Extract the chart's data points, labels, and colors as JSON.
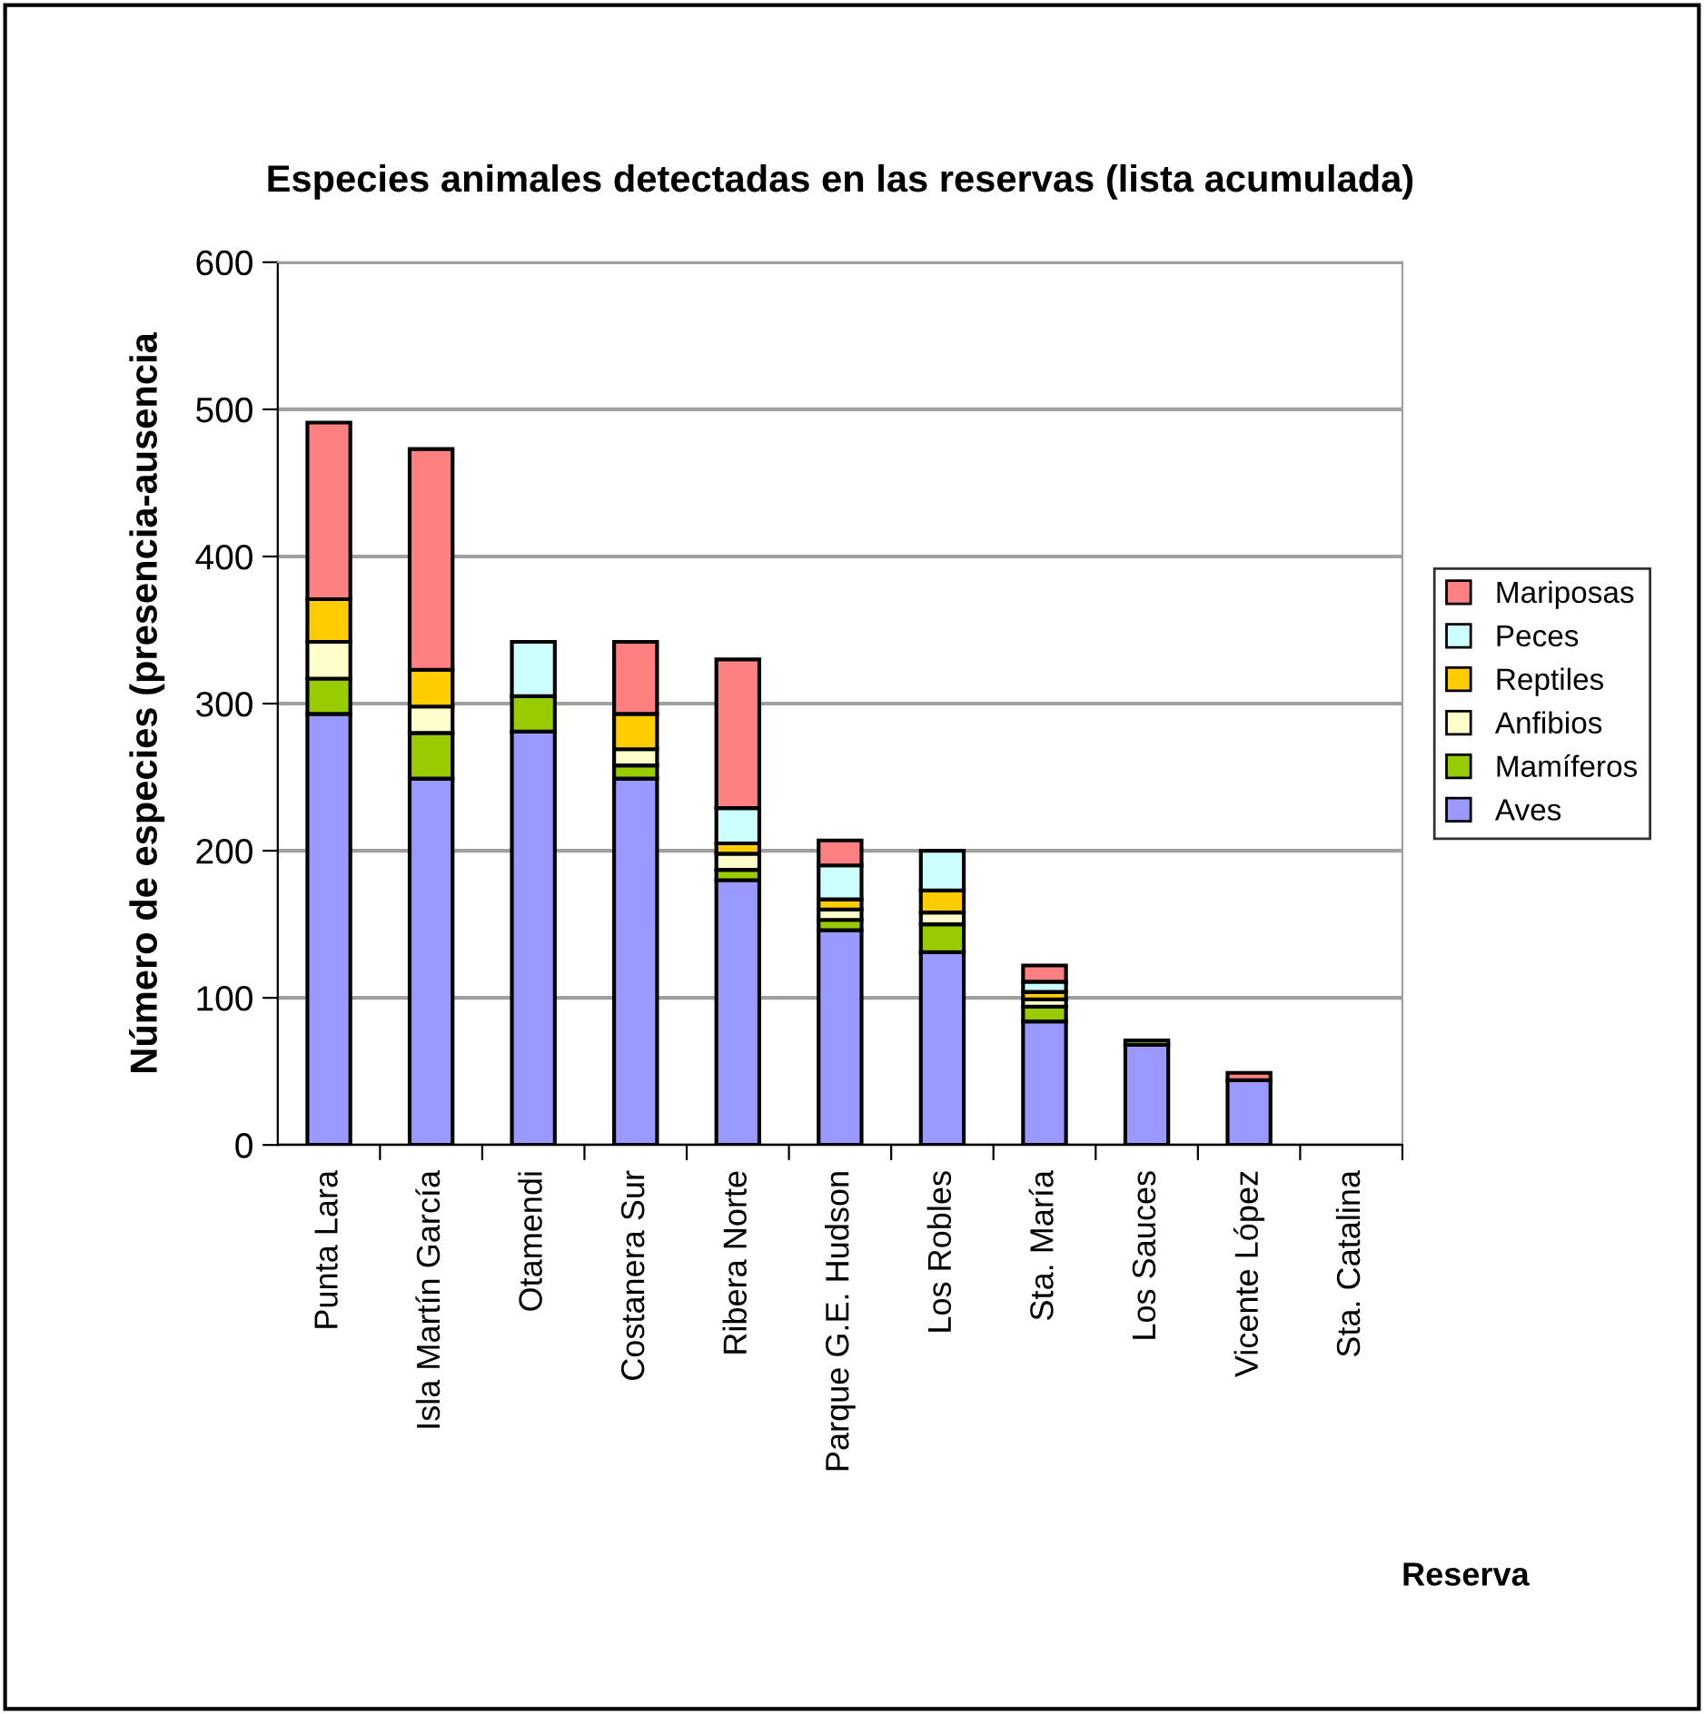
{
  "chart_data": {
    "type": "bar",
    "stacked": true,
    "title": "Especies animales detectadas en las reservas (lista acumulada)",
    "xlabel": "Reserva",
    "ylabel": "Número de especies (presencia-ausencia",
    "categories": [
      "Punta Lara",
      "Isla Martín García",
      "Otamendi",
      "Costanera Sur",
      "Ribera Norte",
      "Parque G.E. Hudson",
      "Los Robles",
      "Sta. María",
      "Los Sauces",
      "Vicente López",
      "Sta. Catalina"
    ],
    "series": [
      {
        "name": "Aves",
        "color": "#9999ff",
        "values": [
          293,
          249,
          281,
          249,
          180,
          146,
          131,
          84,
          68,
          44,
          null
        ]
      },
      {
        "name": "Mamíferos",
        "color": "#99cc00",
        "values": [
          24,
          31,
          24,
          9,
          7,
          7,
          19,
          10,
          3,
          null,
          null
        ]
      },
      {
        "name": "Anfibios",
        "color": "#ffffcc",
        "values": [
          25,
          18,
          null,
          11,
          11,
          7,
          8,
          5,
          null,
          null,
          null
        ]
      },
      {
        "name": "Reptiles",
        "color": "#ffcc00",
        "values": [
          29,
          25,
          null,
          24,
          7,
          7,
          15,
          5,
          null,
          null,
          null
        ]
      },
      {
        "name": "Peces",
        "color": "#ccffff",
        "values": [
          null,
          null,
          37,
          null,
          24,
          23,
          27,
          7,
          null,
          null,
          null
        ]
      },
      {
        "name": "Mariposas",
        "color": "#ff8080",
        "values": [
          120,
          150,
          null,
          49,
          101,
          17,
          null,
          11,
          null,
          5,
          null
        ]
      }
    ],
    "ylim": [
      0,
      600
    ],
    "yticks": [
      0,
      100,
      200,
      300,
      400,
      500,
      600
    ],
    "grid": "y",
    "legend": "right"
  }
}
